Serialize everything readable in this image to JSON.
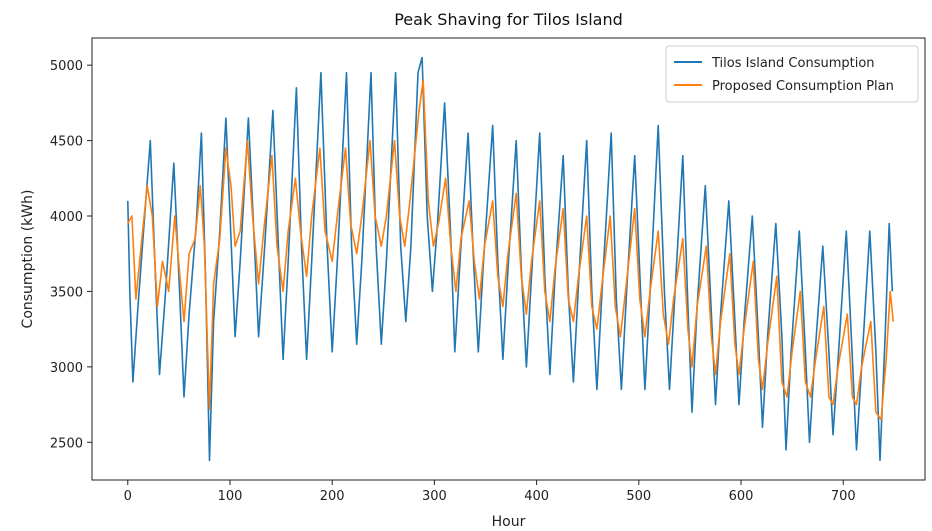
{
  "chart_data": {
    "type": "line",
    "title": "Peak Shaving for Tilos Island",
    "xlabel": "Hour",
    "ylabel": "Consumption (kWh)",
    "xlim": [
      -35,
      780
    ],
    "ylim": [
      2250,
      5180
    ],
    "xticks": [
      0,
      100,
      200,
      300,
      400,
      500,
      600,
      700
    ],
    "yticks": [
      2500,
      3000,
      3500,
      4000,
      4500,
      5000
    ],
    "grid": false,
    "legend_position": "top-right",
    "series": [
      {
        "name": "Tilos Island Consumption",
        "color": "#1f77b4",
        "points": [
          [
            0,
            4100
          ],
          [
            2,
            3500
          ],
          [
            5,
            2900
          ],
          [
            10,
            3400
          ],
          [
            16,
            3950
          ],
          [
            22,
            4500
          ],
          [
            27,
            3600
          ],
          [
            31,
            2950
          ],
          [
            37,
            3500
          ],
          [
            45,
            4350
          ],
          [
            51,
            3450
          ],
          [
            55,
            2800
          ],
          [
            60,
            3350
          ],
          [
            67,
            3950
          ],
          [
            72,
            4550
          ],
          [
            76,
            3600
          ],
          [
            80,
            2380
          ],
          [
            84,
            3300
          ],
          [
            90,
            3900
          ],
          [
            96,
            4650
          ],
          [
            101,
            3850
          ],
          [
            105,
            3200
          ],
          [
            110,
            3700
          ],
          [
            118,
            4650
          ],
          [
            124,
            3800
          ],
          [
            128,
            3200
          ],
          [
            134,
            3800
          ],
          [
            142,
            4700
          ],
          [
            148,
            3700
          ],
          [
            152,
            3050
          ],
          [
            157,
            3700
          ],
          [
            165,
            4850
          ],
          [
            170,
            3800
          ],
          [
            175,
            3050
          ],
          [
            180,
            3700
          ],
          [
            189,
            4950
          ],
          [
            195,
            3800
          ],
          [
            200,
            3100
          ],
          [
            205,
            3700
          ],
          [
            214,
            4950
          ],
          [
            219,
            3800
          ],
          [
            224,
            3150
          ],
          [
            229,
            3700
          ],
          [
            238,
            4950
          ],
          [
            243,
            3800
          ],
          [
            248,
            3150
          ],
          [
            253,
            3700
          ],
          [
            262,
            4950
          ],
          [
            267,
            3800
          ],
          [
            272,
            3300
          ],
          [
            277,
            3800
          ],
          [
            284,
            4950
          ],
          [
            288,
            5050
          ],
          [
            293,
            4000
          ],
          [
            298,
            3500
          ],
          [
            303,
            3950
          ],
          [
            310,
            4750
          ],
          [
            316,
            3850
          ],
          [
            320,
            3100
          ],
          [
            325,
            3700
          ],
          [
            333,
            4550
          ],
          [
            338,
            3750
          ],
          [
            343,
            3100
          ],
          [
            348,
            3700
          ],
          [
            357,
            4600
          ],
          [
            362,
            3700
          ],
          [
            367,
            3050
          ],
          [
            372,
            3650
          ],
          [
            380,
            4500
          ],
          [
            385,
            3650
          ],
          [
            390,
            3000
          ],
          [
            395,
            3600
          ],
          [
            403,
            4550
          ],
          [
            408,
            3600
          ],
          [
            413,
            2950
          ],
          [
            418,
            3600
          ],
          [
            426,
            4400
          ],
          [
            431,
            3500
          ],
          [
            436,
            2900
          ],
          [
            441,
            3550
          ],
          [
            449,
            4500
          ],
          [
            454,
            3500
          ],
          [
            459,
            2850
          ],
          [
            464,
            3500
          ],
          [
            473,
            4550
          ],
          [
            478,
            3450
          ],
          [
            483,
            2850
          ],
          [
            488,
            3500
          ],
          [
            496,
            4400
          ],
          [
            502,
            3450
          ],
          [
            506,
            2850
          ],
          [
            511,
            3500
          ],
          [
            519,
            4600
          ],
          [
            525,
            3500
          ],
          [
            530,
            2850
          ],
          [
            535,
            3450
          ],
          [
            543,
            4400
          ],
          [
            548,
            3400
          ],
          [
            552,
            2700
          ],
          [
            557,
            3400
          ],
          [
            565,
            4200
          ],
          [
            571,
            3350
          ],
          [
            575,
            2750
          ],
          [
            580,
            3350
          ],
          [
            588,
            4100
          ],
          [
            594,
            3300
          ],
          [
            598,
            2750
          ],
          [
            603,
            3300
          ],
          [
            611,
            4000
          ],
          [
            617,
            3200
          ],
          [
            621,
            2600
          ],
          [
            626,
            3200
          ],
          [
            634,
            3950
          ],
          [
            640,
            3200
          ],
          [
            644,
            2450
          ],
          [
            649,
            3100
          ],
          [
            657,
            3900
          ],
          [
            663,
            3100
          ],
          [
            667,
            2500
          ],
          [
            672,
            3050
          ],
          [
            680,
            3800
          ],
          [
            686,
            3100
          ],
          [
            690,
            2550
          ],
          [
            695,
            3050
          ],
          [
            703,
            3900
          ],
          [
            709,
            3050
          ],
          [
            713,
            2450
          ],
          [
            718,
            3000
          ],
          [
            726,
            3900
          ],
          [
            732,
            3100
          ],
          [
            736,
            2380
          ],
          [
            741,
            3200
          ],
          [
            745,
            3950
          ],
          [
            748,
            3500
          ]
        ]
      },
      {
        "name": "Proposed Consumption Plan",
        "color": "#ff7f0e",
        "points": [
          [
            0,
            3950
          ],
          [
            4,
            4000
          ],
          [
            8,
            3450
          ],
          [
            13,
            3800
          ],
          [
            19,
            4200
          ],
          [
            24,
            4000
          ],
          [
            29,
            3400
          ],
          [
            34,
            3700
          ],
          [
            40,
            3500
          ],
          [
            46,
            4000
          ],
          [
            51,
            3600
          ],
          [
            55,
            3300
          ],
          [
            60,
            3750
          ],
          [
            66,
            3850
          ],
          [
            71,
            4200
          ],
          [
            75,
            3800
          ],
          [
            80,
            2720
          ],
          [
            84,
            3550
          ],
          [
            90,
            3850
          ],
          [
            96,
            4450
          ],
          [
            101,
            4200
          ],
          [
            105,
            3800
          ],
          [
            110,
            3900
          ],
          [
            117,
            4500
          ],
          [
            122,
            4000
          ],
          [
            128,
            3550
          ],
          [
            133,
            3900
          ],
          [
            141,
            4400
          ],
          [
            146,
            3800
          ],
          [
            152,
            3500
          ],
          [
            157,
            3900
          ],
          [
            164,
            4250
          ],
          [
            169,
            3900
          ],
          [
            175,
            3600
          ],
          [
            180,
            4000
          ],
          [
            188,
            4450
          ],
          [
            193,
            3900
          ],
          [
            200,
            3700
          ],
          [
            205,
            4000
          ],
          [
            213,
            4450
          ],
          [
            218,
            3950
          ],
          [
            224,
            3750
          ],
          [
            229,
            4000
          ],
          [
            237,
            4500
          ],
          [
            242,
            4000
          ],
          [
            248,
            3800
          ],
          [
            253,
            4000
          ],
          [
            261,
            4500
          ],
          [
            266,
            4000
          ],
          [
            271,
            3800
          ],
          [
            276,
            4100
          ],
          [
            285,
            4700
          ],
          [
            289,
            4900
          ],
          [
            294,
            4100
          ],
          [
            299,
            3800
          ],
          [
            304,
            3950
          ],
          [
            311,
            4250
          ],
          [
            316,
            3800
          ],
          [
            321,
            3500
          ],
          [
            326,
            3850
          ],
          [
            334,
            4100
          ],
          [
            339,
            3700
          ],
          [
            344,
            3450
          ],
          [
            349,
            3800
          ],
          [
            357,
            4100
          ],
          [
            362,
            3600
          ],
          [
            367,
            3400
          ],
          [
            372,
            3750
          ],
          [
            380,
            4150
          ],
          [
            385,
            3600
          ],
          [
            390,
            3350
          ],
          [
            395,
            3700
          ],
          [
            403,
            4100
          ],
          [
            408,
            3500
          ],
          [
            413,
            3300
          ],
          [
            418,
            3650
          ],
          [
            426,
            4050
          ],
          [
            431,
            3450
          ],
          [
            436,
            3300
          ],
          [
            441,
            3600
          ],
          [
            449,
            4000
          ],
          [
            454,
            3400
          ],
          [
            459,
            3250
          ],
          [
            464,
            3550
          ],
          [
            472,
            4000
          ],
          [
            477,
            3400
          ],
          [
            482,
            3200
          ],
          [
            487,
            3500
          ],
          [
            496,
            4050
          ],
          [
            501,
            3450
          ],
          [
            506,
            3200
          ],
          [
            511,
            3500
          ],
          [
            519,
            3900
          ],
          [
            524,
            3350
          ],
          [
            529,
            3150
          ],
          [
            534,
            3450
          ],
          [
            543,
            3850
          ],
          [
            548,
            3250
          ],
          [
            552,
            3000
          ],
          [
            557,
            3400
          ],
          [
            566,
            3800
          ],
          [
            571,
            3200
          ],
          [
            575,
            2950
          ],
          [
            580,
            3300
          ],
          [
            589,
            3750
          ],
          [
            594,
            3150
          ],
          [
            598,
            2950
          ],
          [
            603,
            3250
          ],
          [
            612,
            3700
          ],
          [
            617,
            3050
          ],
          [
            621,
            2850
          ],
          [
            626,
            3150
          ],
          [
            635,
            3600
          ],
          [
            640,
            2900
          ],
          [
            645,
            2800
          ],
          [
            650,
            3100
          ],
          [
            658,
            3500
          ],
          [
            663,
            2900
          ],
          [
            668,
            2800
          ],
          [
            673,
            3050
          ],
          [
            681,
            3400
          ],
          [
            686,
            2800
          ],
          [
            690,
            2750
          ],
          [
            695,
            3000
          ],
          [
            704,
            3350
          ],
          [
            709,
            2800
          ],
          [
            713,
            2750
          ],
          [
            718,
            3000
          ],
          [
            727,
            3300
          ],
          [
            732,
            2700
          ],
          [
            737,
            2650
          ],
          [
            742,
            3050
          ],
          [
            746,
            3500
          ],
          [
            749,
            3300
          ]
        ]
      }
    ]
  }
}
